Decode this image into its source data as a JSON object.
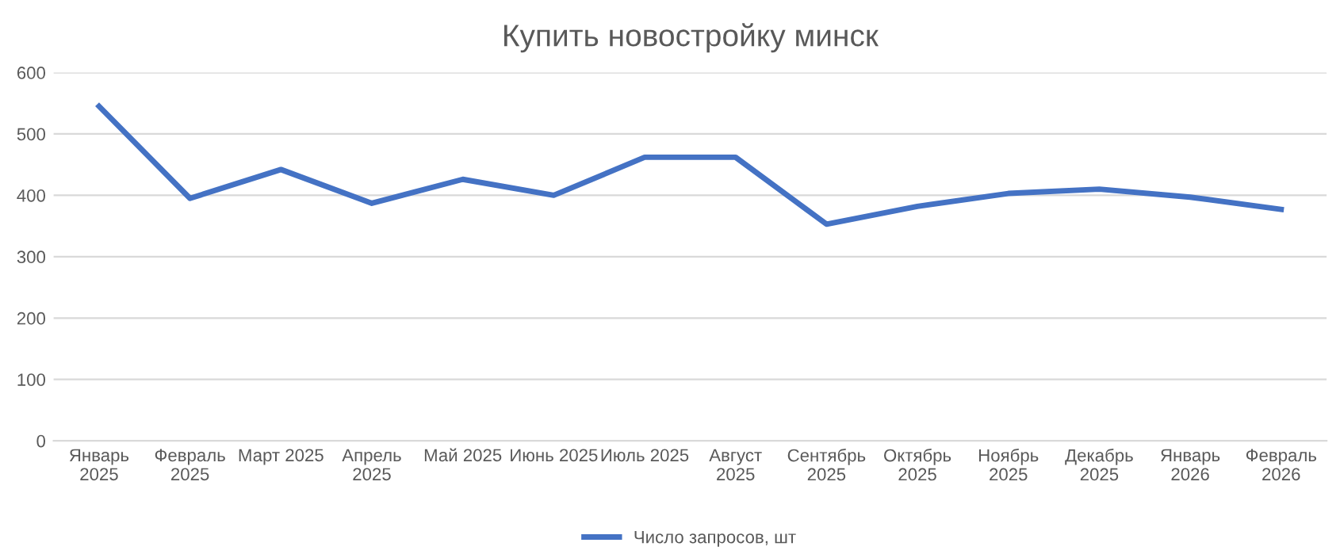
{
  "chart_data": {
    "type": "line",
    "title": "Купить новостройку минск",
    "categories": [
      "Январь\n2025",
      "Февраль\n2025",
      "Март 2025",
      "Апрель\n2025",
      "Май 2025",
      "Июнь 2025",
      "Июль 2025",
      "Август\n2025",
      "Сентябрь\n2025",
      "Октябрь\n2025",
      "Ноябрь\n2025",
      "Декабрь\n2025",
      "Январь\n2026",
      "Февраль\n2026"
    ],
    "series": [
      {
        "name": "Число запросов, шт",
        "color": "#4472c4",
        "values": [
          545,
          395,
          442,
          387,
          426,
          400,
          462,
          462,
          353,
          382,
          403,
          410,
          397,
          377
        ]
      }
    ],
    "ylim": [
      0,
      600
    ],
    "yticks": [
      0,
      100,
      200,
      300,
      400,
      500,
      600
    ],
    "grid": "y",
    "legend": "bottom",
    "marker": "none",
    "line_style": "solid"
  }
}
